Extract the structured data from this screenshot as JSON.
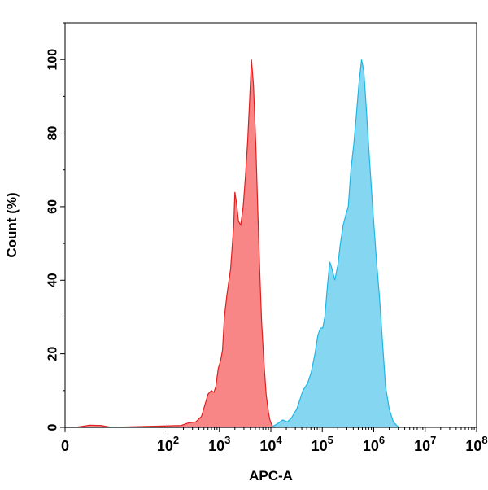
{
  "chart_data": {
    "type": "area",
    "title": "",
    "xlabel": "APC-A",
    "ylabel": "Count (%)",
    "x_scale": "log",
    "xlim": [
      1,
      100000000
    ],
    "ylim": [
      0,
      110
    ],
    "grid": false,
    "legend": "none",
    "x_ticks": [
      {
        "value": 1,
        "base": "0",
        "exp": ""
      },
      {
        "value": 100,
        "base": "10",
        "exp": "2"
      },
      {
        "value": 1000,
        "base": "10",
        "exp": "3"
      },
      {
        "value": 10000,
        "base": "10",
        "exp": "4"
      },
      {
        "value": 100000,
        "base": "10",
        "exp": "5"
      },
      {
        "value": 1000000,
        "base": "10",
        "exp": "6"
      },
      {
        "value": 10000000,
        "base": "10",
        "exp": "7"
      },
      {
        "value": 100000000,
        "base": "10",
        "exp": "8"
      }
    ],
    "y_ticks": [
      0,
      20,
      40,
      60,
      80,
      100
    ],
    "series": [
      {
        "fill": "#f87c7c",
        "stroke": "#dd2020",
        "points": [
          [
            1,
            0
          ],
          [
            1.6,
            0
          ],
          [
            3,
            0.6
          ],
          [
            5,
            0.5
          ],
          [
            8,
            0
          ],
          [
            180,
            0.5
          ],
          [
            250,
            1.2
          ],
          [
            350,
            1.5
          ],
          [
            450,
            3
          ],
          [
            520,
            6
          ],
          [
            600,
            9
          ],
          [
            700,
            10
          ],
          [
            780,
            9.5
          ],
          [
            850,
            11
          ],
          [
            950,
            16
          ],
          [
            1050,
            18
          ],
          [
            1150,
            21
          ],
          [
            1250,
            30
          ],
          [
            1400,
            36
          ],
          [
            1650,
            43
          ],
          [
            1900,
            55
          ],
          [
            2000,
            64
          ],
          [
            2150,
            61
          ],
          [
            2350,
            56
          ],
          [
            2600,
            55
          ],
          [
            2900,
            60
          ],
          [
            3200,
            68
          ],
          [
            3550,
            78
          ],
          [
            3900,
            90
          ],
          [
            4200,
            100
          ],
          [
            4600,
            93
          ],
          [
            5100,
            77
          ],
          [
            5600,
            58
          ],
          [
            6100,
            42
          ],
          [
            6600,
            29
          ],
          [
            7300,
            18
          ],
          [
            8100,
            9
          ],
          [
            9000,
            4
          ],
          [
            9600,
            2
          ],
          [
            10500,
            0.5
          ],
          [
            12000,
            0
          ]
        ]
      },
      {
        "fill": "#7ad3f0",
        "stroke": "#1eb6e4",
        "points": [
          [
            1,
            0
          ],
          [
            10000,
            0
          ],
          [
            13500,
            1
          ],
          [
            17000,
            2
          ],
          [
            21000,
            1.5
          ],
          [
            25000,
            2.5
          ],
          [
            32000,
            5
          ],
          [
            42000,
            10
          ],
          [
            52000,
            12
          ],
          [
            61000,
            15
          ],
          [
            72000,
            20
          ],
          [
            82000,
            25
          ],
          [
            92000,
            27
          ],
          [
            102000,
            27
          ],
          [
            112000,
            30
          ],
          [
            125000,
            38
          ],
          [
            140000,
            45
          ],
          [
            155000,
            43
          ],
          [
            175000,
            40
          ],
          [
            200000,
            44
          ],
          [
            225000,
            50
          ],
          [
            255000,
            55
          ],
          [
            290000,
            58
          ],
          [
            320000,
            60
          ],
          [
            360000,
            70
          ],
          [
            410000,
            77
          ],
          [
            460000,
            85
          ],
          [
            520000,
            94
          ],
          [
            580000,
            100
          ],
          [
            640000,
            97
          ],
          [
            700000,
            89
          ],
          [
            800000,
            76
          ],
          [
            950000,
            60
          ],
          [
            1150000,
            44
          ],
          [
            1300000,
            35
          ],
          [
            1500000,
            22
          ],
          [
            1700000,
            11
          ],
          [
            2000000,
            5
          ],
          [
            2400000,
            1.5
          ],
          [
            2800000,
            0.5
          ],
          [
            3100000,
            0
          ]
        ]
      }
    ]
  }
}
